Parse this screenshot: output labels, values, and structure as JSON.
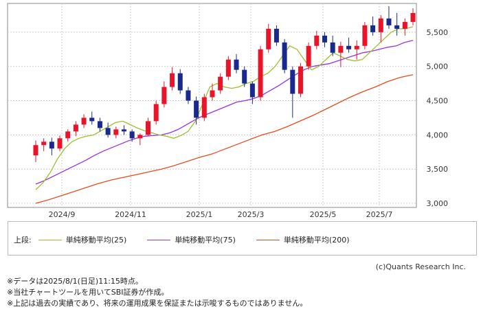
{
  "chart_data": {
    "type": "candlestick",
    "x_ticks": [
      "2024/9",
      "2024/11",
      "2025/1",
      "2025/3",
      "2025/5",
      "2025/7"
    ],
    "y_ticks": [
      "5,500",
      "5,000",
      "4,500",
      "4,000",
      "3,500",
      "3,000"
    ],
    "ylim": [
      2940,
      5920
    ],
    "grid": true,
    "legend_placement": "bottom",
    "ohlc_weekly_approx": [
      [
        3700,
        3920,
        3600,
        3850
      ],
      [
        3850,
        3950,
        3760,
        3900
      ],
      [
        3900,
        3960,
        3700,
        3800
      ],
      [
        3800,
        3990,
        3760,
        3950
      ],
      [
        3950,
        4080,
        3900,
        4050
      ],
      [
        4050,
        4200,
        3980,
        4150
      ],
      [
        4150,
        4300,
        4100,
        4250
      ],
      [
        4250,
        4340,
        4150,
        4200
      ],
      [
        4200,
        4250,
        4050,
        4100
      ],
      [
        4100,
        4180,
        3960,
        4000
      ],
      [
        4000,
        4120,
        3950,
        4080
      ],
      [
        4080,
        4140,
        4000,
        4050
      ],
      [
        4050,
        4080,
        3900,
        3950
      ],
      [
        3950,
        4020,
        3850,
        4000
      ],
      [
        4000,
        4250,
        3980,
        4200
      ],
      [
        4200,
        4500,
        4150,
        4450
      ],
      [
        4450,
        4780,
        4400,
        4700
      ],
      [
        4700,
        4990,
        4650,
        4900
      ],
      [
        4900,
        4960,
        4600,
        4650
      ],
      [
        4650,
        4700,
        4450,
        4500
      ],
      [
        4500,
        4560,
        4150,
        4250
      ],
      [
        4250,
        4600,
        4200,
        4550
      ],
      [
        4550,
        4750,
        4500,
        4650
      ],
      [
        4650,
        4900,
        4600,
        4850
      ],
      [
        4850,
        5150,
        4800,
        5100
      ],
      [
        5100,
        5180,
        4900,
        4950
      ],
      [
        4950,
        5000,
        4700,
        4750
      ],
      [
        4750,
        4780,
        4450,
        4550
      ],
      [
        4550,
        5300,
        4500,
        5250
      ],
      [
        5250,
        5620,
        5200,
        5550
      ],
      [
        5550,
        5600,
        5300,
        5350
      ],
      [
        5350,
        5400,
        4900,
        4950
      ],
      [
        4950,
        5000,
        4250,
        4600
      ],
      [
        4600,
        5050,
        4550,
        5000
      ],
      [
        5000,
        5350,
        4950,
        5300
      ],
      [
        5300,
        5520,
        5250,
        5450
      ],
      [
        5450,
        5500,
        5280,
        5350
      ],
      [
        5350,
        5450,
        5150,
        5200
      ],
      [
        5200,
        5360,
        4990,
        5300
      ],
      [
        5300,
        5420,
        5200,
        5250
      ],
      [
        5250,
        5380,
        5100,
        5300
      ],
      [
        5300,
        5650,
        5250,
        5600
      ],
      [
        5600,
        5730,
        5450,
        5500
      ],
      [
        5500,
        5750,
        5350,
        5700
      ],
      [
        5700,
        5880,
        5550,
        5600
      ],
      [
        5600,
        5780,
        5450,
        5550
      ],
      [
        5550,
        5700,
        5450,
        5650
      ],
      [
        5650,
        5850,
        5600,
        5780
      ]
    ],
    "ma25_approx": [
      3200,
      3300,
      3450,
      3650,
      3800,
      3900,
      3950,
      3980,
      4000,
      4060,
      4120,
      4180,
      4200,
      4150,
      4100,
      4060,
      4030,
      4000,
      3980,
      3950,
      3990,
      4050,
      4200,
      4450,
      4700,
      4750,
      4700,
      4680,
      4700,
      4750,
      4780,
      4850,
      4900,
      5000,
      5150,
      5300,
      5250,
      5100,
      4950,
      5000,
      5100,
      5200,
      5150,
      5100,
      5080,
      5100,
      5200,
      5300,
      5400,
      5500,
      5550,
      5550,
      5580
    ],
    "ma75_approx": [
      3280,
      3330,
      3390,
      3450,
      3510,
      3570,
      3630,
      3700,
      3760,
      3810,
      3860,
      3910,
      3950,
      3980,
      3990,
      4000,
      4030,
      4080,
      4150,
      4220,
      4280,
      4330,
      4380,
      4430,
      4480,
      4500,
      4530,
      4580,
      4650,
      4720,
      4800,
      4880,
      4950,
      5000,
      5020,
      5040,
      5080,
      5120,
      5160,
      5200,
      5220,
      5250,
      5280,
      5300,
      5350,
      5380
    ],
    "ma200_approx": [
      3000,
      3050,
      3110,
      3170,
      3230,
      3290,
      3340,
      3380,
      3420,
      3460,
      3500,
      3550,
      3610,
      3670,
      3720,
      3790,
      3860,
      3930,
      4000,
      4050,
      4120,
      4200,
      4280,
      4370,
      4460,
      4550,
      4630,
      4700,
      4780,
      4840,
      4880
    ]
  },
  "legend": {
    "prefix": "上段:",
    "items": [
      {
        "label": "単純移動平均(25)",
        "color": "#9bbf2a"
      },
      {
        "label": "単純移動平均(75)",
        "color": "#9a2ee0"
      },
      {
        "label": "単純移動平均(200)",
        "color": "#e84a1c"
      }
    ]
  },
  "colors": {
    "up": "#e8142a",
    "down": "#1a2a8c",
    "grid": "#cccccc",
    "frame": "#888888"
  },
  "credit": "(c)Quants Research Inc.",
  "notes": [
    "※データは2025/8/1(日足)11:15時点。",
    "※当社チャートツールを用いてSBI証券が作成。",
    "※上記は過去の実績であり、将来の運用成果を保証または示唆するものではありません。"
  ]
}
